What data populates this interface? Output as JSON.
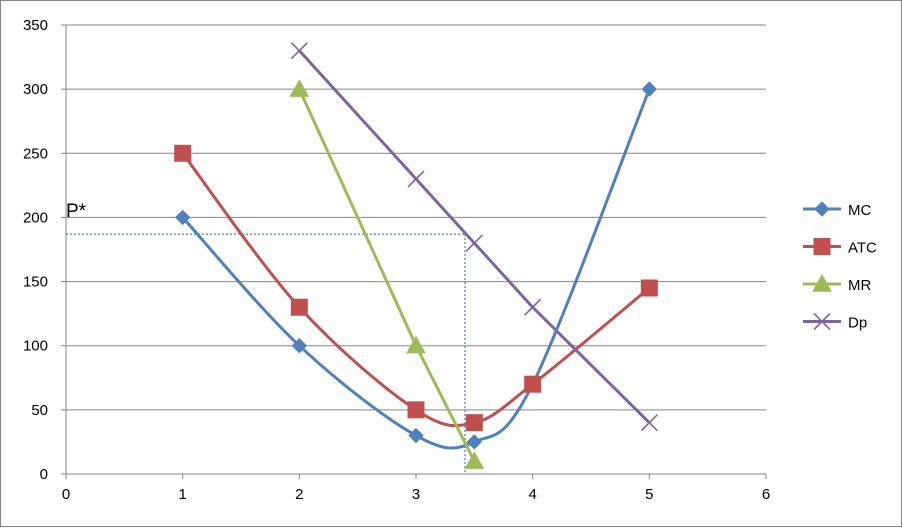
{
  "chart_data": {
    "type": "line",
    "title": "",
    "xlabel": "",
    "ylabel": "",
    "xlim": [
      0,
      6
    ],
    "ylim": [
      0,
      350
    ],
    "x_ticks": [
      0,
      1,
      2,
      3,
      4,
      5,
      6
    ],
    "y_ticks": [
      0,
      50,
      100,
      150,
      200,
      250,
      300,
      350
    ],
    "grid": "horizontal",
    "legend_position": "right",
    "series": [
      {
        "name": "MC",
        "color": "#4F81BD",
        "marker": "diamond",
        "smooth": true,
        "x": [
          1,
          2,
          3,
          3.5,
          4,
          5
        ],
        "y": [
          200,
          100,
          30,
          25,
          70,
          300
        ]
      },
      {
        "name": "ATC",
        "color": "#C0504D",
        "marker": "square",
        "smooth": true,
        "x": [
          1,
          2,
          3,
          3.5,
          4,
          5
        ],
        "y": [
          250,
          130,
          50,
          40,
          70,
          145
        ]
      },
      {
        "name": "MR",
        "color": "#9BBB59",
        "marker": "triangle",
        "smooth": false,
        "x": [
          2,
          3,
          3.5
        ],
        "y": [
          300,
          100,
          10
        ]
      },
      {
        "name": "Dp",
        "color": "#8064A2",
        "marker": "x",
        "smooth": false,
        "x": [
          2,
          3,
          3.5,
          4,
          5
        ],
        "y": [
          330,
          230,
          180,
          130,
          40
        ]
      }
    ],
    "annotations": [
      {
        "text": "P*",
        "price": 187,
        "quantity": 3.42,
        "style": "dotted-guides"
      }
    ]
  }
}
